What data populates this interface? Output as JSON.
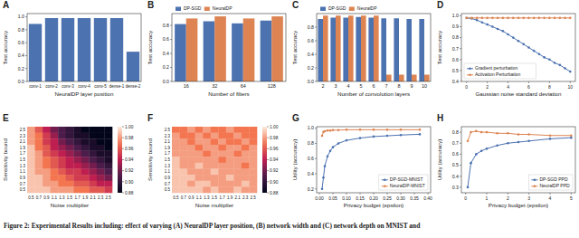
{
  "chart_data": [
    {
      "type": "bar",
      "title": "A",
      "xlabel": "NeuralDP layer position",
      "ylabel": "Test accuracy",
      "categories": [
        "conv-1",
        "conv-2",
        "conv-3",
        "conv-4",
        "conv-5",
        "dense-1",
        "dense-2"
      ],
      "values": [
        0.89,
        0.98,
        0.98,
        0.98,
        0.98,
        0.98,
        0.46
      ],
      "color": "#4c72b0",
      "ylim": [
        0,
        1.05
      ],
      "yticks": [
        {
          "value": 0,
          "label": "0.0"
        },
        0.2,
        0.4,
        0.6,
        0.8,
        {
          "value": 1,
          "label": "1.0"
        }
      ],
      "grid": false
    },
    {
      "type": "bar",
      "title": "B",
      "xlabel": "Number of filters",
      "ylabel": "Test accuracy",
      "categories": [
        "16",
        "32",
        "64",
        "128"
      ],
      "series": [
        {
          "name": "DP-SGD",
          "color": "#4c72b0",
          "values": [
            0.82,
            0.86,
            0.83,
            0.87
          ]
        },
        {
          "name": "NeuralDP",
          "color": "#dd8452",
          "values": [
            0.9,
            0.93,
            0.9,
            0.93
          ]
        }
      ],
      "ylim": [
        0,
        0.97
      ],
      "yticks": [
        {
          "value": 0,
          "label": "0.0"
        },
        0.2,
        0.4,
        0.6,
        0.8
      ],
      "grid": false,
      "legend": "top"
    },
    {
      "type": "bar",
      "title": "C",
      "xlabel": "Number of convolution layers",
      "ylabel": "Test accuracy",
      "categories": [
        "2",
        "3",
        "4",
        "5",
        "6",
        "7",
        "8",
        "9",
        "10"
      ],
      "series": [
        {
          "name": "DP-SGD",
          "color": "#4c72b0",
          "values": [
            0.92,
            0.94,
            0.94,
            0.95,
            0.94,
            0.93,
            0.93,
            0.92,
            0.92
          ]
        },
        {
          "name": "NeuralDP",
          "color": "#dd8452",
          "values": [
            0.97,
            0.97,
            0.97,
            0.97,
            0.97,
            0.1,
            0.1,
            0.1,
            0.1
          ]
        }
      ],
      "ylim": [
        0,
        1.0
      ],
      "yticks": [
        {
          "value": 0,
          "label": "0.0"
        },
        0.2,
        0.4,
        0.6,
        0.8
      ],
      "grid": false,
      "legend": "top"
    },
    {
      "type": "line",
      "title": "D",
      "xlabel": "Gaussian noise standard deviation",
      "ylabel": "Test accuracy",
      "x": [
        0,
        0.5,
        1,
        1.5,
        2,
        2.5,
        3,
        3.5,
        4,
        4.5,
        5,
        5.5,
        6,
        6.5,
        7,
        7.5,
        8,
        8.5,
        9,
        9.5,
        10
      ],
      "series": [
        {
          "name": "Gradient perturbation",
          "color": "#4c72b0",
          "marker": "o",
          "values": [
            0.98,
            0.975,
            0.96,
            0.94,
            0.92,
            0.9,
            0.88,
            0.86,
            0.83,
            0.8,
            0.77,
            0.74,
            0.71,
            0.68,
            0.65,
            0.62,
            0.6,
            0.57,
            0.55,
            0.52,
            0.49
          ]
        },
        {
          "name": "Activation Perturbation",
          "color": "#dd8452",
          "marker": "o",
          "values": [
            0.98,
            0.98,
            0.98,
            0.98,
            0.98,
            0.98,
            0.98,
            0.98,
            0.98,
            0.98,
            0.98,
            0.98,
            0.98,
            0.98,
            0.98,
            0.98,
            0.98,
            0.98,
            0.98,
            0.98,
            0.98
          ]
        }
      ],
      "xlim": [
        -0.5,
        10.5
      ],
      "xticks": [
        0,
        2,
        4,
        6,
        8,
        10
      ],
      "ylim": [
        0.4,
        1.02
      ],
      "yticks": [
        0.4,
        0.5,
        0.6,
        0.7,
        0.8,
        0.9,
        {
          "value": 1,
          "label": "1.0"
        }
      ],
      "grid": false,
      "legend": "lower left"
    },
    {
      "type": "heatmap",
      "title": "E",
      "xlabel": "Noise multiplier",
      "ylabel": "Sensitivity bound",
      "x_categories": [
        "0.5",
        "0.7",
        "0.9",
        "1.1",
        "1.3",
        "1.5",
        "1.7",
        "1.9",
        "2.1",
        "2.3",
        "2.5"
      ],
      "y_categories": [
        "2.5",
        "2.3",
        "2.1",
        "1.9",
        "1.7",
        "1.5",
        "1.3",
        "1.1",
        "0.9",
        "0.7",
        "0.5"
      ],
      "cells": [
        [
          0.98,
          0.96,
          0.94,
          0.92,
          0.91,
          0.9,
          0.89,
          0.88,
          0.88,
          0.88,
          0.88
        ],
        [
          0.98,
          0.97,
          0.95,
          0.93,
          0.91,
          0.9,
          0.89,
          0.89,
          0.88,
          0.88,
          0.88
        ],
        [
          0.98,
          0.97,
          0.95,
          0.94,
          0.92,
          0.91,
          0.9,
          0.89,
          0.89,
          0.88,
          0.88
        ],
        [
          0.99,
          0.97,
          0.96,
          0.94,
          0.93,
          0.92,
          0.91,
          0.9,
          0.89,
          0.89,
          0.88
        ],
        [
          0.99,
          0.98,
          0.96,
          0.95,
          0.94,
          0.93,
          0.92,
          0.91,
          0.9,
          0.89,
          0.89
        ],
        [
          0.99,
          0.98,
          0.97,
          0.96,
          0.95,
          0.94,
          0.93,
          0.92,
          0.91,
          0.9,
          0.89
        ],
        [
          0.99,
          0.98,
          0.97,
          0.96,
          0.95,
          0.94,
          0.94,
          0.93,
          0.92,
          0.91,
          0.9
        ],
        [
          0.99,
          0.98,
          0.98,
          0.97,
          0.96,
          0.95,
          0.95,
          0.94,
          0.93,
          0.92,
          0.91
        ],
        [
          0.99,
          0.99,
          0.98,
          0.97,
          0.97,
          0.96,
          0.95,
          0.95,
          0.94,
          0.93,
          0.92
        ],
        [
          0.99,
          0.99,
          0.98,
          0.98,
          0.97,
          0.97,
          0.96,
          0.96,
          0.95,
          0.94,
          0.94
        ],
        [
          0.99,
          0.99,
          0.99,
          0.98,
          0.98,
          0.98,
          0.97,
          0.97,
          0.96,
          0.96,
          0.95
        ]
      ],
      "color_range": [
        0.88,
        1.0
      ],
      "color_ticks": [
        {
          "value": 1,
          "label": "1.00"
        },
        0.98,
        0.96,
        0.94,
        0.92,
        {
          "value": 0.9,
          "label": "0.90"
        },
        0.88
      ]
    },
    {
      "type": "heatmap",
      "title": "F",
      "xlabel": "Noise multiplier",
      "ylabel": "Sensitivity bound",
      "x_categories": [
        "0.5",
        "0.7",
        "0.9",
        "1.1",
        "1.3",
        "1.5",
        "1.7",
        "1.9",
        "2.1",
        "2.3",
        "2.5"
      ],
      "y_categories": [
        "2.5",
        "2.3",
        "2.1",
        "1.9",
        "1.7",
        "1.5",
        "1.3",
        "1.1",
        "0.9",
        "0.7",
        "0.5"
      ],
      "cells": [
        [
          0.97,
          0.97,
          0.98,
          0.97,
          0.98,
          0.97,
          0.97,
          0.98,
          0.97,
          0.97,
          0.97
        ],
        [
          0.98,
          0.97,
          0.97,
          0.98,
          0.97,
          0.98,
          0.97,
          0.97,
          0.98,
          0.97,
          0.97
        ],
        [
          0.98,
          0.98,
          0.97,
          0.98,
          0.98,
          0.97,
          0.98,
          0.97,
          0.97,
          0.98,
          0.97
        ],
        [
          0.98,
          0.98,
          0.98,
          0.97,
          0.98,
          0.98,
          0.97,
          0.98,
          0.98,
          0.97,
          0.98
        ],
        [
          0.98,
          0.98,
          0.98,
          0.98,
          0.97,
          0.98,
          0.98,
          0.98,
          0.97,
          0.98,
          0.98
        ],
        [
          0.99,
          0.98,
          0.98,
          0.98,
          0.98,
          0.98,
          0.97,
          0.98,
          0.98,
          0.98,
          0.98
        ],
        [
          0.99,
          0.98,
          0.98,
          0.99,
          0.98,
          0.98,
          0.98,
          0.98,
          0.98,
          0.97,
          0.98
        ],
        [
          0.99,
          0.99,
          0.98,
          0.98,
          0.98,
          0.99,
          0.98,
          0.98,
          0.98,
          0.98,
          0.98
        ],
        [
          0.99,
          0.99,
          0.99,
          0.98,
          0.98,
          0.98,
          0.98,
          0.99,
          0.98,
          0.98,
          0.98
        ],
        [
          0.99,
          0.99,
          0.98,
          0.99,
          0.99,
          0.98,
          0.98,
          0.98,
          0.98,
          0.99,
          0.98
        ],
        [
          0.99,
          0.99,
          0.99,
          0.99,
          0.98,
          0.99,
          0.98,
          0.98,
          0.99,
          0.98,
          0.98
        ]
      ],
      "color_range": [
        0.88,
        1.0
      ],
      "color_ticks": [
        {
          "value": 1,
          "label": "1.00"
        },
        0.98,
        0.96,
        0.94,
        0.92,
        {
          "value": 0.9,
          "label": "0.90"
        },
        0.88
      ]
    },
    {
      "type": "line",
      "title": "G",
      "xlabel": "Privacy budget (epsilon)",
      "ylabel": "Utility (accuracy)",
      "x": [
        0.01,
        0.015,
        0.02,
        0.03,
        0.04,
        0.05,
        0.07,
        0.1,
        0.15,
        0.2,
        0.25,
        0.3,
        0.37
      ],
      "series": [
        {
          "name": "DP-SGD-MNIST",
          "color": "#4c72b0",
          "marker": "o",
          "values": [
            0.2,
            0.35,
            0.5,
            0.63,
            0.7,
            0.75,
            0.8,
            0.84,
            0.87,
            0.89,
            0.9,
            0.91,
            0.92
          ]
        },
        {
          "name": "NeuralDP-MNIST",
          "color": "#dd8452",
          "marker": "o",
          "values": [
            0.9,
            0.95,
            0.96,
            0.97,
            0.97,
            0.975,
            0.975,
            0.98,
            0.98,
            0.98,
            0.98,
            0.98,
            0.98
          ]
        }
      ],
      "xlim": [
        -0.01,
        0.41
      ],
      "xticks": [
        {
          "value": 0,
          "label": "0.00"
        },
        0.05,
        {
          "value": 0.1,
          "label": "0.10"
        },
        0.15,
        {
          "value": 0.2,
          "label": "0.20"
        },
        0.25,
        {
          "value": 0.3,
          "label": "0.30"
        },
        0.35,
        {
          "value": 0.4,
          "label": "0.40"
        }
      ],
      "ylim": [
        0.15,
        1.02
      ],
      "yticks": [
        0.2,
        0.4,
        0.6,
        0.8,
        {
          "value": 1,
          "label": "1.0"
        }
      ],
      "grid": false,
      "legend": "lower right"
    },
    {
      "type": "line",
      "title": "H",
      "xlabel": "Privacy budget (epsilon)",
      "ylabel": "Utility (accuracy)",
      "x": [
        0.1,
        0.25,
        0.5,
        0.75,
        1,
        1.5,
        2,
        2.5,
        3,
        4,
        5
      ],
      "series": [
        {
          "name": "DP-SGD PPD",
          "color": "#4c72b0",
          "marker": "o",
          "values": [
            0.3,
            0.52,
            0.6,
            0.63,
            0.65,
            0.68,
            0.7,
            0.71,
            0.72,
            0.74,
            0.75
          ]
        },
        {
          "name": "NeuralDP PPD",
          "color": "#dd8452",
          "marker": "o",
          "values": [
            0.72,
            0.8,
            0.81,
            0.8,
            0.8,
            0.79,
            0.79,
            0.78,
            0.78,
            0.77,
            0.77
          ]
        }
      ],
      "xlim": [
        -0.2,
        5.2
      ],
      "xticks": [
        0,
        1,
        2,
        3,
        4,
        5
      ],
      "ylim": [
        0.25,
        0.85
      ],
      "yticks": [
        0.3,
        0.4,
        0.5,
        0.6,
        0.7,
        0.8
      ],
      "grid": false,
      "legend": "lower right"
    }
  ],
  "caption": "Figure 2: Experimental Results including: effect of varying (A) NeuralDP layer position, (B) network width and (C) network depth on MNIST and"
}
